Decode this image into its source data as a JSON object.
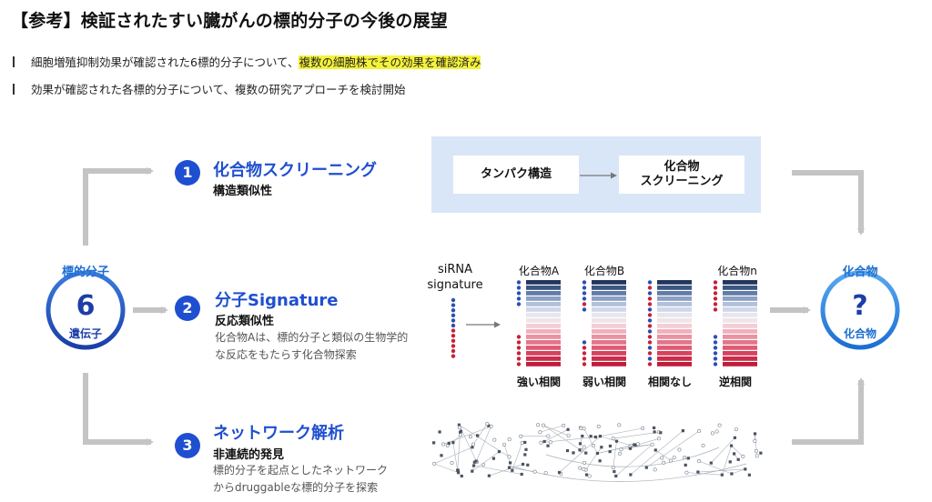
{
  "header": {
    "title": "【参考】検証されたすい臓がんの標的分子の今後の展望",
    "bullet1_plain": "細胞増殖抑制効果が確認された6標的分子について、",
    "bullet1_highlight": "複数の細胞株でその効果を確認済み",
    "bullet2": "効果が確認された各標的分子について、複数の研究アプローチを検討開始"
  },
  "left_node": {
    "top_label": "標的分子",
    "number": "6",
    "bottom_label": "遺伝子"
  },
  "right_node": {
    "top_label": "化合物",
    "symbol": "?",
    "bottom_label": "化合物"
  },
  "approaches": [
    {
      "num": "1",
      "title": "化合物スクリーニング",
      "subtitle": "構造類似性",
      "desc1": "",
      "desc2": ""
    },
    {
      "num": "2",
      "title": "分子Signature",
      "subtitle": "反応類似性",
      "desc1": "化合物Aは、標的分子と類似の生物学的",
      "desc2": "な反応をもたらす化合物探索"
    },
    {
      "num": "3",
      "title": "ネットワーク解析",
      "subtitle": "非連続的発見",
      "desc1": "標的分子を起点としたネットワーク",
      "desc2": "からdruggableな標的分子を探索"
    }
  ],
  "screening_panel": {
    "box1": "タンパク構造",
    "box2_line1": "化合物",
    "box2_line2": "スクリーニング"
  },
  "signature_panel": {
    "sirna_line1": "siRNA",
    "sirna_line2": "signature",
    "compounds": [
      {
        "name": "化合物A",
        "relation": "強い相関"
      },
      {
        "name": "化合物B",
        "relation": "弱い相関"
      },
      {
        "name": "",
        "relation": "相関なし"
      },
      {
        "name": "化合物n",
        "relation": "逆相関"
      }
    ]
  },
  "colors": {
    "accent_blue": "#1f4fd0",
    "light_blue": "#1f6fd0",
    "panel_bg": "#d9e6f7",
    "arrow_gray": "#c4c4c4",
    "dot_blue": "#2c4fb0",
    "dot_red": "#c8203a",
    "highlight": "#f5f23a"
  }
}
